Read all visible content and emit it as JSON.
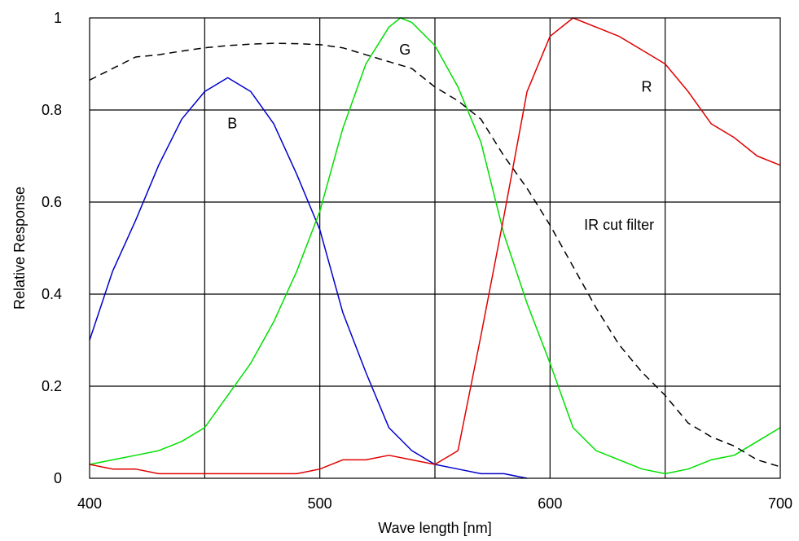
{
  "chart_data": {
    "type": "line",
    "title": "",
    "xlabel": "Wave length [nm]",
    "ylabel": "Relative Response",
    "xlim": [
      400,
      700
    ],
    "ylim": [
      0,
      1
    ],
    "grid": true,
    "x_ticks": [
      {
        "value": 400,
        "label": "400"
      },
      {
        "value": 500,
        "label": "500"
      },
      {
        "value": 600,
        "label": "600"
      },
      {
        "value": 700,
        "label": "700"
      }
    ],
    "x_gridlines": [
      450,
      500,
      550,
      600,
      650
    ],
    "y_ticks": [
      {
        "value": 0,
        "label": "0"
      },
      {
        "value": 0.2,
        "label": "0.2"
      },
      {
        "value": 0.4,
        "label": "0.4"
      },
      {
        "value": 0.6,
        "label": "0.6"
      },
      {
        "value": 0.8,
        "label": "0.8"
      },
      {
        "value": 1,
        "label": "1"
      }
    ],
    "series": [
      {
        "key": "blue",
        "color": "#0000cc",
        "dash": "solid",
        "points": [
          [
            400,
            0.3
          ],
          [
            410,
            0.45
          ],
          [
            420,
            0.56
          ],
          [
            430,
            0.68
          ],
          [
            440,
            0.78
          ],
          [
            450,
            0.84
          ],
          [
            460,
            0.87
          ],
          [
            470,
            0.84
          ],
          [
            480,
            0.77
          ],
          [
            490,
            0.66
          ],
          [
            500,
            0.54
          ],
          [
            510,
            0.36
          ],
          [
            520,
            0.23
          ],
          [
            530,
            0.11
          ],
          [
            540,
            0.06
          ],
          [
            550,
            0.03
          ],
          [
            560,
            0.02
          ],
          [
            570,
            0.01
          ],
          [
            580,
            0.01
          ],
          [
            590,
            0.0
          ]
        ]
      },
      {
        "key": "green",
        "color": "#00e000",
        "dash": "solid",
        "points": [
          [
            400,
            0.03
          ],
          [
            410,
            0.04
          ],
          [
            420,
            0.05
          ],
          [
            430,
            0.06
          ],
          [
            440,
            0.08
          ],
          [
            450,
            0.11
          ],
          [
            460,
            0.18
          ],
          [
            470,
            0.25
          ],
          [
            480,
            0.34
          ],
          [
            490,
            0.45
          ],
          [
            500,
            0.58
          ],
          [
            510,
            0.76
          ],
          [
            520,
            0.9
          ],
          [
            530,
            0.98
          ],
          [
            535,
            1.0
          ],
          [
            540,
            0.99
          ],
          [
            550,
            0.94
          ],
          [
            560,
            0.85
          ],
          [
            570,
            0.73
          ],
          [
            580,
            0.53
          ],
          [
            590,
            0.38
          ],
          [
            600,
            0.25
          ],
          [
            610,
            0.11
          ],
          [
            620,
            0.06
          ],
          [
            630,
            0.04
          ],
          [
            640,
            0.02
          ],
          [
            650,
            0.01
          ],
          [
            660,
            0.02
          ],
          [
            670,
            0.04
          ],
          [
            680,
            0.05
          ],
          [
            690,
            0.08
          ],
          [
            700,
            0.11
          ]
        ]
      },
      {
        "key": "red",
        "color": "#e00000",
        "dash": "solid",
        "points": [
          [
            400,
            0.03
          ],
          [
            410,
            0.02
          ],
          [
            420,
            0.02
          ],
          [
            430,
            0.01
          ],
          [
            440,
            0.01
          ],
          [
            450,
            0.01
          ],
          [
            460,
            0.01
          ],
          [
            470,
            0.01
          ],
          [
            480,
            0.01
          ],
          [
            490,
            0.01
          ],
          [
            500,
            0.02
          ],
          [
            510,
            0.04
          ],
          [
            520,
            0.04
          ],
          [
            530,
            0.05
          ],
          [
            540,
            0.04
          ],
          [
            550,
            0.03
          ],
          [
            560,
            0.06
          ],
          [
            570,
            0.31
          ],
          [
            580,
            0.57
          ],
          [
            590,
            0.84
          ],
          [
            600,
            0.96
          ],
          [
            610,
            1.0
          ],
          [
            620,
            0.98
          ],
          [
            630,
            0.96
          ],
          [
            640,
            0.93
          ],
          [
            650,
            0.9
          ],
          [
            660,
            0.84
          ],
          [
            670,
            0.77
          ],
          [
            680,
            0.74
          ],
          [
            690,
            0.7
          ],
          [
            700,
            0.68
          ]
        ]
      },
      {
        "key": "ir",
        "color": "#000000",
        "dash": "dashed",
        "points": [
          [
            400,
            0.865
          ],
          [
            410,
            0.89
          ],
          [
            420,
            0.915
          ],
          [
            430,
            0.92
          ],
          [
            440,
            0.928
          ],
          [
            450,
            0.935
          ],
          [
            460,
            0.94
          ],
          [
            470,
            0.943
          ],
          [
            480,
            0.945
          ],
          [
            490,
            0.944
          ],
          [
            500,
            0.942
          ],
          [
            510,
            0.935
          ],
          [
            520,
            0.92
          ],
          [
            530,
            0.905
          ],
          [
            540,
            0.89
          ],
          [
            550,
            0.85
          ],
          [
            560,
            0.82
          ],
          [
            570,
            0.78
          ],
          [
            580,
            0.7
          ],
          [
            590,
            0.63
          ],
          [
            600,
            0.55
          ],
          [
            610,
            0.46
          ],
          [
            620,
            0.37
          ],
          [
            630,
            0.29
          ],
          [
            640,
            0.23
          ],
          [
            650,
            0.18
          ],
          [
            660,
            0.12
          ],
          [
            670,
            0.09
          ],
          [
            680,
            0.07
          ],
          [
            690,
            0.04
          ],
          [
            700,
            0.025
          ]
        ]
      }
    ],
    "annotations": [
      {
        "text": "B",
        "x": 462,
        "y": 0.76
      },
      {
        "text": "G",
        "x": 537,
        "y": 0.92
      },
      {
        "text": "R",
        "x": 642,
        "y": 0.84
      },
      {
        "text": "IR cut filter",
        "x": 630,
        "y": 0.54
      }
    ]
  }
}
